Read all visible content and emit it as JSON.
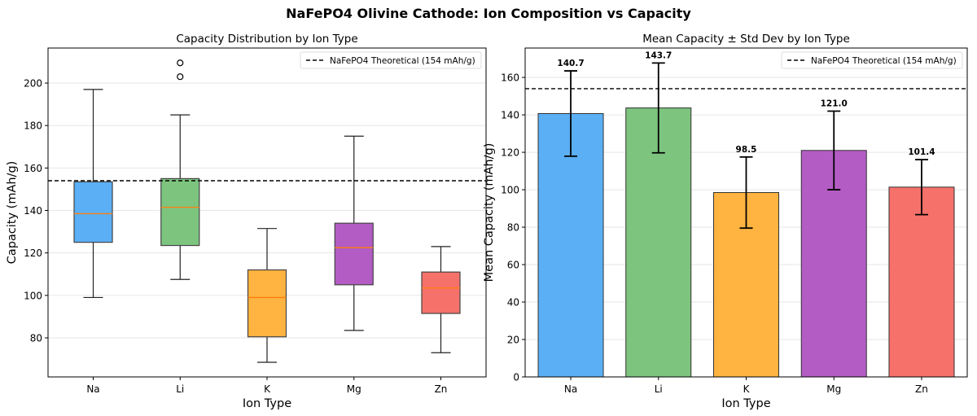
{
  "title": "NaFePO4 Olivine Cathode: Ion Composition vs Capacity",
  "colors": {
    "Na": "#5aaff5",
    "Li": "#7dc47f",
    "K": "#ffb340",
    "Mg": "#b35cc4",
    "Zn": "#f5716a",
    "median": "#ff7f0e"
  },
  "chart_data": [
    {
      "type": "box",
      "title": "Capacity Distribution by Ion Type",
      "xlabel": "Ion Type",
      "ylabel": "Capacity (mAh/g)",
      "categories": [
        "Na",
        "Li",
        "K",
        "Mg",
        "Zn"
      ],
      "boxes": [
        {
          "whislo": 99,
          "q1": 125,
          "med": 138.5,
          "q3": 153.5,
          "whishi": 197,
          "fliers": []
        },
        {
          "whislo": 107.5,
          "q1": 123.5,
          "med": 141.5,
          "q3": 155,
          "whishi": 185,
          "fliers": [
            203,
            209.5
          ]
        },
        {
          "whislo": 68.5,
          "q1": 80.5,
          "med": 99,
          "q3": 112,
          "whishi": 131.5,
          "fliers": []
        },
        {
          "whislo": 83.5,
          "q1": 105,
          "med": 122.5,
          "q3": 134,
          "whishi": 175,
          "fliers": []
        },
        {
          "whislo": 73,
          "q1": 91.5,
          "med": 103.5,
          "q3": 111,
          "whishi": 123,
          "fliers": []
        }
      ],
      "ylim": [
        61.6,
        216.5
      ],
      "yticks": [
        80,
        100,
        120,
        140,
        160,
        180,
        200
      ],
      "reference_line": {
        "value": 154,
        "label": "NaFePO4 Theoretical (154 mAh/g)"
      },
      "grid": "y",
      "legend": "top-right"
    },
    {
      "type": "bar",
      "title": "Mean Capacity ± Std Dev by Ion Type",
      "xlabel": "Ion Type",
      "ylabel": "Mean Capacity (mAh/g)",
      "categories": [
        "Na",
        "Li",
        "K",
        "Mg",
        "Zn"
      ],
      "values": [
        140.7,
        143.7,
        98.5,
        121.0,
        101.4
      ],
      "value_labels": [
        "140.7",
        "143.7",
        "98.5",
        "121.0",
        "101.4"
      ],
      "errors": [
        22.8,
        24.0,
        19.0,
        21.0,
        14.7
      ],
      "ylim": [
        0,
        175.7
      ],
      "yticks": [
        0,
        20,
        40,
        60,
        80,
        100,
        120,
        140,
        160
      ],
      "reference_line": {
        "value": 154,
        "label": "NaFePO4 Theoretical (154 mAh/g)"
      },
      "grid": "y",
      "legend": "top-right"
    }
  ]
}
